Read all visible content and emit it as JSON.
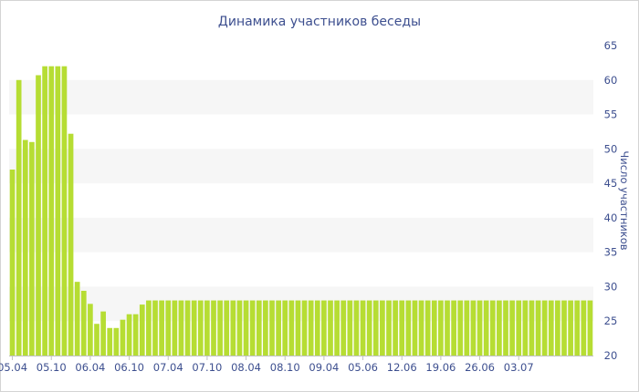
{
  "chart_data": {
    "type": "bar",
    "title": "Динамика участников беседы",
    "xlabel": "",
    "ylabel": "Число участников",
    "ylim": [
      20,
      65
    ],
    "y_ticks": [
      20,
      25,
      30,
      35,
      40,
      45,
      50,
      55,
      60,
      65
    ],
    "y_axis_side": "right",
    "grid": "alternating horizontal bands",
    "bar_color": "#b6dd33",
    "x_tick_labels": [
      {
        "label": "05.04",
        "index": 0
      },
      {
        "label": "05.10",
        "index": 6
      },
      {
        "label": "06.04",
        "index": 12
      },
      {
        "label": "06.10",
        "index": 18
      },
      {
        "label": "07.04",
        "index": 24
      },
      {
        "label": "07.10",
        "index": 30
      },
      {
        "label": "08.04",
        "index": 36
      },
      {
        "label": "08.10",
        "index": 42
      },
      {
        "label": "09.04",
        "index": 48
      },
      {
        "label": "05.06",
        "index": 54
      },
      {
        "label": "12.06",
        "index": 60
      },
      {
        "label": "19.06",
        "index": 66
      },
      {
        "label": "26.06",
        "index": 72
      },
      {
        "label": "03.07",
        "index": 78
      }
    ],
    "values": [
      47,
      60,
      51.3,
      51,
      60.7,
      62,
      62,
      62,
      62,
      52.2,
      30.7,
      29.4,
      27.5,
      24.6,
      26.4,
      24,
      24,
      25.2,
      26,
      26,
      27.4,
      28,
      28,
      28,
      28,
      28,
      28,
      28,
      28,
      28,
      28,
      28,
      28,
      28,
      28,
      28,
      28,
      28,
      28,
      28,
      28,
      28,
      28,
      28,
      28,
      28,
      28,
      28,
      28,
      28,
      28,
      28,
      28,
      28,
      28,
      28,
      28,
      28,
      28,
      28,
      28,
      28,
      28,
      28,
      28,
      28,
      28,
      28,
      28,
      28,
      28,
      28,
      28,
      28,
      28,
      28,
      28,
      28,
      28,
      28,
      28,
      28,
      28,
      28,
      28,
      28,
      28,
      28,
      28,
      28
    ]
  }
}
